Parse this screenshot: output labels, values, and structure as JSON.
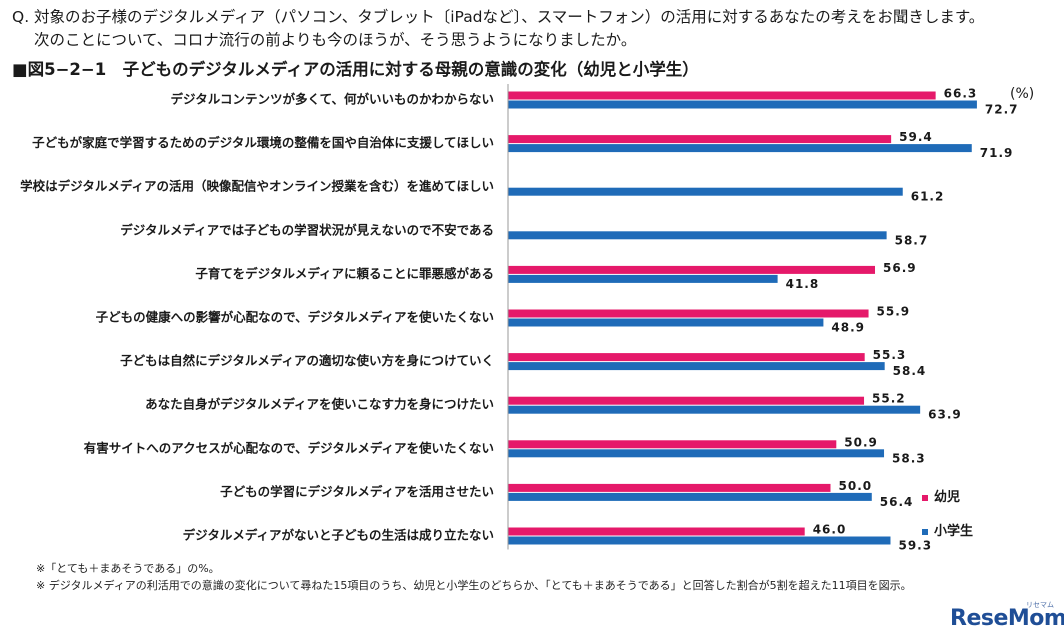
{
  "question": {
    "line1": "Q. 対象のお子様のデジタルメディア（パソコン、タブレット〔iPadなど〕、スマートフォン）の活用に対するあなたの考えをお聞きします。",
    "line2": "次のことについて、コロナ流行の前よりも今のほうが、そう思うようになりましたか。"
  },
  "figure_title": "■図5−2−1　子どものデジタルメディアの活用に対する母親の意識の変化（幼児と小学生）",
  "unit": "(%)",
  "colors": {
    "infant": "#e5196a",
    "elementary": "#1f6bb8"
  },
  "chart_data": {
    "type": "bar",
    "orientation": "horizontal",
    "categories": [
      "デジタルコンテンツが多くて、何がいいものかわからない",
      "子どもが家庭で学習するためのデジタル環境の整備を国や自治体に支援してほしい",
      "学校はデジタルメディアの活用（映像配信やオンライン授業を含む）を進めてほしい",
      "デジタルメディアでは子どもの学習状況が見えないので不安である",
      "子育てをデジタルメディアに頼ることに罪悪感がある",
      "子どもの健康への影響が心配なので、デジタルメディアを使いたくない",
      "子どもは自然にデジタルメディアの適切な使い方を身につけていく",
      "あなた自身がデジタルメディアを使いこなす力を身につけたい",
      "有害サイトへのアクセスが心配なので、デジタルメディアを使いたくない",
      "子どもの学習にデジタルメディアを活用させたい",
      "デジタルメディアがないと子どもの生活は成り立たない"
    ],
    "series": [
      {
        "name": "幼児",
        "values": [
          66.3,
          59.4,
          null,
          null,
          56.9,
          55.9,
          55.3,
          55.2,
          50.9,
          50.0,
          46.0
        ]
      },
      {
        "name": "小学生",
        "values": [
          72.7,
          71.9,
          61.2,
          58.7,
          41.8,
          48.9,
          58.4,
          63.9,
          58.3,
          56.4,
          59.3
        ]
      }
    ],
    "value_labels": [
      [
        "66.3",
        "59.4",
        "",
        "",
        "56.9",
        "55.9",
        "55.3",
        "55.2",
        "50.9",
        "50.0",
        "46.0"
      ],
      [
        "72.7",
        "71.9",
        "61.2",
        "58.7",
        "41.8",
        "48.9",
        "58.4",
        "63.9",
        "58.3",
        "56.4",
        "59.3"
      ]
    ],
    "xlim": [
      0,
      100
    ],
    "grid": false,
    "legend_position": "bottom-right"
  },
  "legend": {
    "infant": "幼児",
    "elementary": "小学生"
  },
  "notes": {
    "line1": "※「とても＋まあそうである」の%。",
    "line2": "※ デジタルメディアの利活用での意識の変化について尋ねた15項目のうち、幼児と小学生のどちらか、「とても＋まあそうである」と回答した割合が5割を超えた11項目を図示。"
  },
  "logo": {
    "text": "ReseMom",
    "sub": "リセマム"
  }
}
